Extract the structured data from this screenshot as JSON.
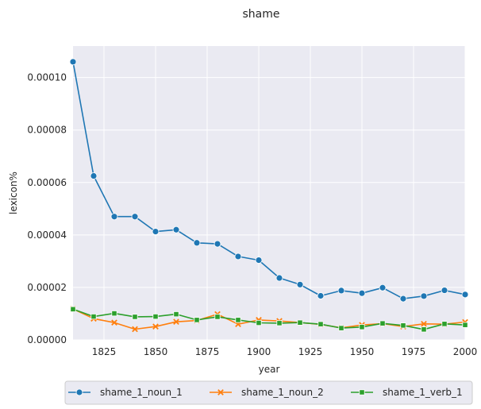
{
  "chart_data": {
    "type": "line",
    "title": "shame",
    "xlabel": "year",
    "ylabel": "lexicon%",
    "xlim": [
      1810,
      2000
    ],
    "ylim": [
      0,
      0.000112
    ],
    "x_ticks": [
      1825,
      1850,
      1875,
      1900,
      1925,
      1950,
      1975,
      2000
    ],
    "y_ticks": [
      0,
      2e-05,
      4e-05,
      6e-05,
      8e-05,
      0.0001
    ],
    "y_tick_labels": [
      "0.00000",
      "0.00002",
      "0.00004",
      "0.00006",
      "0.00008",
      "0.00010"
    ],
    "grid": true,
    "legend_position": "bottom-center",
    "x": [
      1810,
      1820,
      1830,
      1840,
      1850,
      1860,
      1870,
      1880,
      1890,
      1900,
      1910,
      1920,
      1930,
      1940,
      1950,
      1960,
      1970,
      1980,
      1990,
      2000
    ],
    "series": [
      {
        "name": "shame_1_noun_1",
        "color": "#1f77b4",
        "marker": "circle",
        "values": [
          0.000106,
          6.25e-05,
          4.7e-05,
          4.7e-05,
          4.13e-05,
          4.2e-05,
          3.7e-05,
          3.66e-05,
          3.18e-05,
          3.04e-05,
          2.36e-05,
          2.11e-05,
          1.68e-05,
          1.88e-05,
          1.78e-05,
          1.99e-05,
          1.57e-05,
          1.67e-05,
          1.89e-05,
          1.73e-05
        ]
      },
      {
        "name": "shame_1_noun_2",
        "color": "#ff7f0e",
        "marker": "x",
        "values": [
          1.18e-05,
          8.1e-06,
          6.6e-06,
          4.1e-06,
          5.1e-06,
          6.9e-06,
          7.4e-06,
          9.8e-06,
          6e-06,
          7.6e-06,
          7.2e-06,
          6.6e-06,
          5.9e-06,
          4.6e-06,
          5.7e-06,
          6.2e-06,
          5.1e-06,
          6.1e-06,
          6e-06,
          6.8e-06
        ]
      },
      {
        "name": "shame_1_verb_1",
        "color": "#2ca02c",
        "marker": "square",
        "values": [
          1.17e-05,
          8.9e-06,
          1.01e-05,
          8.8e-06,
          8.9e-06,
          9.8e-06,
          7.6e-06,
          8.8e-06,
          7.6e-06,
          6.5e-06,
          6.4e-06,
          6.6e-06,
          6e-06,
          4.5e-06,
          4.9e-06,
          6.3e-06,
          5.5e-06,
          4e-06,
          6.1e-06,
          5.7e-06
        ]
      }
    ]
  }
}
